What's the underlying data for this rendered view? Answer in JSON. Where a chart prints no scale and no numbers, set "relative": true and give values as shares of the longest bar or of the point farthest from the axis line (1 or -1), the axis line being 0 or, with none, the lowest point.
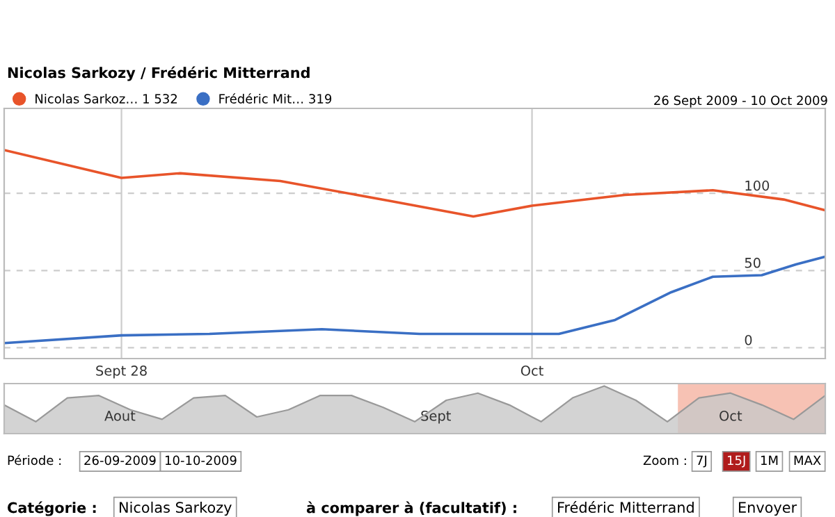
{
  "chart_data": [
    {
      "type": "line",
      "title": "Nicolas Sarkozy / Frédéric Mitterrand",
      "subtitle": "26 Sept 2009 - 10 Oct 2009",
      "xlim": [
        "2009-09-26",
        "2009-10-10"
      ],
      "xticks": [
        {
          "value": "2009-09-28",
          "label": "Sept 28"
        },
        {
          "value": "2009-10-05",
          "label": "Oct"
        }
      ],
      "ylim": [
        -7,
        155
      ],
      "yticks": [
        0,
        50,
        100
      ],
      "grid": true,
      "legend": "top left",
      "marker": "none",
      "line_style": "solid",
      "series": [
        {
          "name": "Nicolas Sarkoz… 1 532",
          "color": "#e8542a",
          "x": [
            "2009-09-26",
            "2009-09-28",
            "2009-09-29",
            "2009-09-30T17:00",
            "2009-10-02T14:00",
            "2009-10-04",
            "2009-10-05",
            "2009-10-06T14:00",
            "2009-10-08T02:00",
            "2009-10-09T07:00",
            "2009-10-10"
          ],
          "values": [
            128,
            110,
            113,
            108,
            95,
            85,
            92,
            99,
            102,
            96,
            89
          ]
        },
        {
          "name": "Frédéric Mit… 319",
          "color": "#3a6fc4",
          "x": [
            "2009-09-26",
            "2009-09-28",
            "2009-09-29T12:00",
            "2009-10-01T10:00",
            "2009-10-03T02:00",
            "2009-10-05T11:00",
            "2009-10-06T10:00",
            "2009-10-07T09:00",
            "2009-10-08T02:00",
            "2009-10-08T22:00",
            "2009-10-09T12:00",
            "2009-10-10"
          ],
          "values": [
            3,
            8,
            9,
            12,
            9,
            9,
            18,
            36,
            46,
            47,
            54,
            59
          ]
        }
      ]
    },
    {
      "type": "area",
      "relative": true,
      "tick_labels": "x",
      "xlim": [
        "2009-07-24",
        "2009-10-10"
      ],
      "xticks": [
        {
          "value": "2009-08-04",
          "label": "Aout"
        },
        {
          "value": "2009-09-03",
          "label": "Sept"
        },
        {
          "value": "2009-10-01",
          "label": "Oct"
        }
      ],
      "bands": [
        {
          "axis": "x",
          "from": "2009-09-26",
          "to": "2009-10-10",
          "color": "#f7c2b4"
        }
      ],
      "series": [
        {
          "color": "#c8c8c8",
          "x": [
            "2009-07-24",
            "2009-07-27",
            "2009-07-30",
            "2009-08-02",
            "2009-08-05",
            "2009-08-08",
            "2009-08-11",
            "2009-08-14",
            "2009-08-17",
            "2009-08-20",
            "2009-08-23",
            "2009-08-26",
            "2009-08-29",
            "2009-09-01",
            "2009-09-04",
            "2009-09-07",
            "2009-09-10",
            "2009-09-13",
            "2009-09-16",
            "2009-09-19",
            "2009-09-22",
            "2009-09-25",
            "2009-09-28",
            "2009-10-01",
            "2009-10-04",
            "2009-10-07",
            "2009-10-10"
          ],
          "values": [
            0.6,
            0.25,
            0.75,
            0.8,
            0.5,
            0.3,
            0.75,
            0.8,
            0.35,
            0.5,
            0.8,
            0.8,
            0.55,
            0.25,
            0.7,
            0.85,
            0.6,
            0.25,
            0.75,
            1,
            0.7,
            0.25,
            0.75,
            0.85,
            0.6,
            0.3,
            0.8
          ]
        }
      ],
      "annotations": [
        "Période :",
        "26-09-2009",
        "-",
        "10-10-2009",
        "Zoom :",
        "7J",
        "15J",
        "1M",
        "MAX",
        "Catégorie :",
        "Nicolas Sarkozy",
        "à comparer à (facultatif) :",
        "Frédéric Mitterrand",
        "Envoyer"
      ]
    }
  ]
}
